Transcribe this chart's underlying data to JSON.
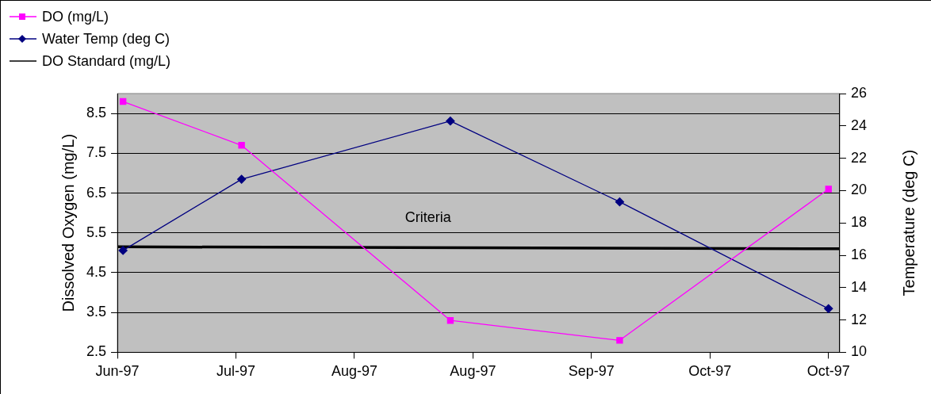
{
  "chart_data": {
    "type": "line",
    "x": [
      "1997-06-26",
      "1997-07-17",
      "1997-08-23",
      "1997-09-22",
      "1997-10-29"
    ],
    "series": [
      {
        "name": "DO (mg/L)",
        "color": "#ff00ff",
        "marker": "square",
        "values": [
          8.8,
          7.7,
          3.3,
          2.8,
          6.6
        ]
      },
      {
        "name": "Water Temp (deg C)",
        "color": "#000080",
        "marker": "diamond",
        "axis": "y2",
        "values": [
          16.3,
          20.7,
          24.3,
          19.3,
          12.7
        ]
      },
      {
        "name": "DO Standard (mg/L)",
        "color": "#000000",
        "marker": "none",
        "x": [
          "1997-06-25",
          "1997-10-31"
        ],
        "values": [
          5.15,
          5.1
        ]
      }
    ],
    "ylabel": "Dissolved Oxygen (mg/L)",
    "y2label": "Temperature (deg C)",
    "xlim": [
      "1997-06-25",
      "1997-10-31"
    ],
    "xticks": [
      {
        "value": "1997-06-25",
        "label": "Jun-97"
      },
      {
        "value": "1997-07-16",
        "label": "Jul-97"
      },
      {
        "value": "1997-08-06",
        "label": "Aug-97"
      },
      {
        "value": "1997-08-27",
        "label": "Aug-97"
      },
      {
        "value": "1997-09-17",
        "label": "Sep-97"
      },
      {
        "value": "1997-10-08",
        "label": "Oct-97"
      },
      {
        "value": "1997-10-29",
        "label": "Oct-97"
      }
    ],
    "ylim": [
      2.5,
      9
    ],
    "yticks": [
      2.5,
      3.5,
      4.5,
      5.5,
      6.5,
      7.5,
      8.5
    ],
    "y2lim": [
      10,
      26
    ],
    "y2ticks": [
      10,
      12,
      14,
      16,
      18,
      20,
      22,
      24,
      26
    ],
    "annotations": [
      "Criteria"
    ],
    "grid": "y",
    "legend": "top left"
  }
}
